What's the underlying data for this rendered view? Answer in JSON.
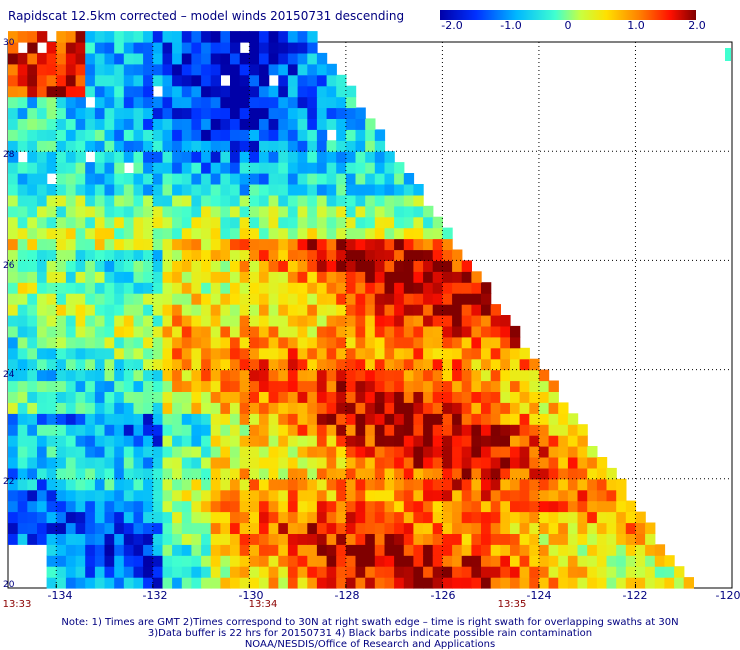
{
  "title": "Rapidscat 12.5km corrected – model winds 20150731 descending",
  "colorbar": {
    "tick_labels": [
      "-2.0",
      "-1.0",
      "0",
      "1.0",
      "2.0"
    ],
    "min": -2.0,
    "max": 2.0
  },
  "map": {
    "lon_range": [
      -135,
      -120
    ],
    "lat_range": [
      20,
      30
    ],
    "lon_labels": [
      "-134",
      "-132",
      "-130",
      "-128",
      "-126",
      "-124",
      "-122",
      "-120"
    ],
    "lat_labels": [
      "30",
      "28",
      "26",
      "24",
      "22",
      "20"
    ],
    "time_labels": [
      {
        "text": "13:33",
        "lon": -135
      },
      {
        "text": "13:34",
        "lon": -130
      },
      {
        "text": "13:35",
        "lon": -124.75
      }
    ]
  },
  "notes": [
    "Note: 1) Times are GMT 2)Times correspond to 30N at right swath edge – time is right swath for overlapping swaths at 30N",
    "3)Data buffer is 22 hrs for 20150731 4) Black barbs indicate possible rain contamination",
    "NOAA/NESDIS/Office of Research and Applications"
  ]
}
